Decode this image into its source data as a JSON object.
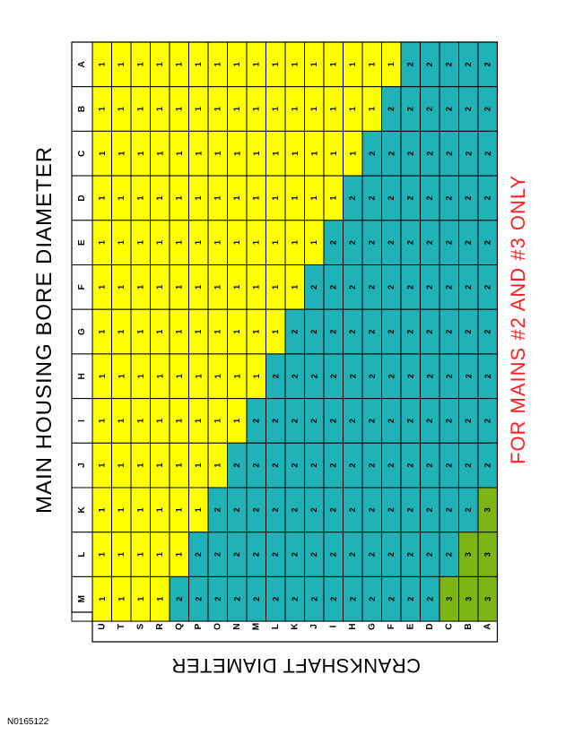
{
  "title": "MAIN HOUSING BORE DIAMETER",
  "note": "FOR MAINS #2 AND #3 ONLY",
  "crank_label": "CRANKSHAFT DIAMETER",
  "figure_id": "N0165122",
  "colors": {
    "grade1": "#FFFF00",
    "grade2": "#1FB3B8",
    "grade3": "#7DB515",
    "note": "#FF2020",
    "border": "#000000"
  },
  "bore_letters": [
    "A",
    "B",
    "C",
    "D",
    "E",
    "F",
    "G",
    "H",
    "I",
    "J",
    "K",
    "L",
    "M"
  ],
  "crank_letters": [
    "U",
    "T",
    "S",
    "R",
    "Q",
    "P",
    "O",
    "N",
    "M",
    "L",
    "K",
    "J",
    "I",
    "H",
    "G",
    "F",
    "E",
    "D",
    "C",
    "B",
    "A"
  ],
  "grade_table": [
    [
      "1",
      "1",
      "1",
      "1",
      "1",
      "1",
      "1",
      "1",
      "1",
      "1",
      "1",
      "1",
      "1",
      "1",
      "1",
      "1",
      "2",
      "2",
      "2",
      "2",
      "2"
    ],
    [
      "1",
      "1",
      "1",
      "1",
      "1",
      "1",
      "1",
      "1",
      "1",
      "1",
      "1",
      "1",
      "1",
      "1",
      "1",
      "2",
      "2",
      "2",
      "2",
      "2",
      "2"
    ],
    [
      "1",
      "1",
      "1",
      "1",
      "1",
      "1",
      "1",
      "1",
      "1",
      "1",
      "1",
      "1",
      "1",
      "1",
      "2",
      "2",
      "2",
      "2",
      "2",
      "2",
      "2"
    ],
    [
      "1",
      "1",
      "1",
      "1",
      "1",
      "1",
      "1",
      "1",
      "1",
      "1",
      "1",
      "1",
      "1",
      "2",
      "2",
      "2",
      "2",
      "2",
      "2",
      "2",
      "2"
    ],
    [
      "1",
      "1",
      "1",
      "1",
      "1",
      "1",
      "1",
      "1",
      "1",
      "1",
      "1",
      "1",
      "2",
      "2",
      "2",
      "2",
      "2",
      "2",
      "2",
      "2",
      "2"
    ],
    [
      "1",
      "1",
      "1",
      "1",
      "1",
      "1",
      "1",
      "1",
      "1",
      "1",
      "1",
      "2",
      "2",
      "2",
      "2",
      "2",
      "2",
      "2",
      "2",
      "2",
      "2"
    ],
    [
      "1",
      "1",
      "1",
      "1",
      "1",
      "1",
      "1",
      "1",
      "1",
      "1",
      "2",
      "2",
      "2",
      "2",
      "2",
      "2",
      "2",
      "2",
      "2",
      "2",
      "2"
    ],
    [
      "1",
      "1",
      "1",
      "1",
      "1",
      "1",
      "1",
      "1",
      "1",
      "2",
      "2",
      "2",
      "2",
      "2",
      "2",
      "2",
      "2",
      "2",
      "2",
      "2",
      "2"
    ],
    [
      "1",
      "1",
      "1",
      "1",
      "1",
      "1",
      "1",
      "1",
      "2",
      "2",
      "2",
      "2",
      "2",
      "2",
      "2",
      "2",
      "2",
      "2",
      "2",
      "2",
      "2"
    ],
    [
      "1",
      "1",
      "1",
      "1",
      "1",
      "1",
      "1",
      "2",
      "2",
      "2",
      "2",
      "2",
      "2",
      "2",
      "2",
      "2",
      "2",
      "2",
      "2",
      "2",
      "2"
    ],
    [
      "1",
      "1",
      "1",
      "1",
      "1",
      "1",
      "2",
      "2",
      "2",
      "2",
      "2",
      "2",
      "2",
      "2",
      "2",
      "2",
      "2",
      "2",
      "2",
      "2",
      "3"
    ],
    [
      "1",
      "1",
      "1",
      "1",
      "1",
      "2",
      "2",
      "2",
      "2",
      "2",
      "2",
      "2",
      "2",
      "2",
      "2",
      "2",
      "2",
      "2",
      "2",
      "3",
      "3"
    ],
    [
      "1",
      "1",
      "1",
      "1",
      "2",
      "2",
      "2",
      "2",
      "2",
      "2",
      "2",
      "2",
      "2",
      "2",
      "2",
      "2",
      "2",
      "2",
      "3",
      "3",
      "3"
    ]
  ]
}
